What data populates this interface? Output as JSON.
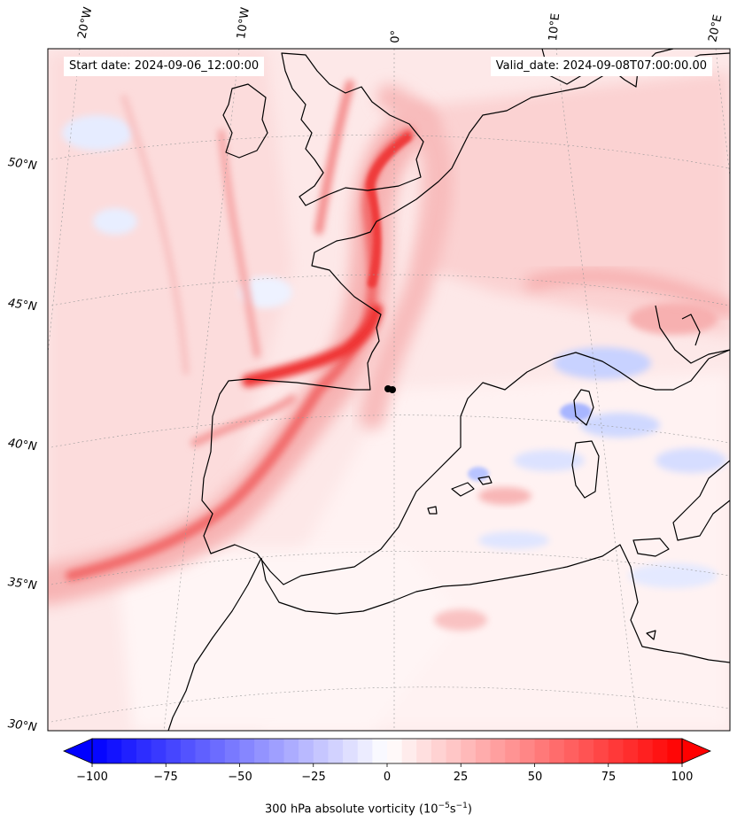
{
  "map": {
    "start_date_text": "Start date: 2024-09-06_12:00:00",
    "valid_date_text": "Valid_date: 2024-09-08T07:00:00.00",
    "longitude_labels": [
      "20°W",
      "10°W",
      "0°",
      "10°E",
      "20°E"
    ],
    "latitude_labels": [
      "50°N",
      "45°N",
      "40°N",
      "35°N",
      "30°N"
    ],
    "field": "300 hPa absolute vorticity",
    "colors": {
      "positive_max": "#ff0000",
      "negative_max": "#0000ff",
      "neutral": "#ffffff",
      "coast": "#000000"
    }
  },
  "colorbar": {
    "ticks": [
      "−100",
      "−75",
      "−50",
      "−25",
      "0",
      "25",
      "50",
      "75",
      "100"
    ],
    "label_main": "300 hPa absolute vorticity (10",
    "label_exp1": "−5",
    "label_mid": "s",
    "label_exp2": "−1",
    "label_end": ")",
    "range": [
      -100,
      100
    ],
    "extend": "both"
  }
}
